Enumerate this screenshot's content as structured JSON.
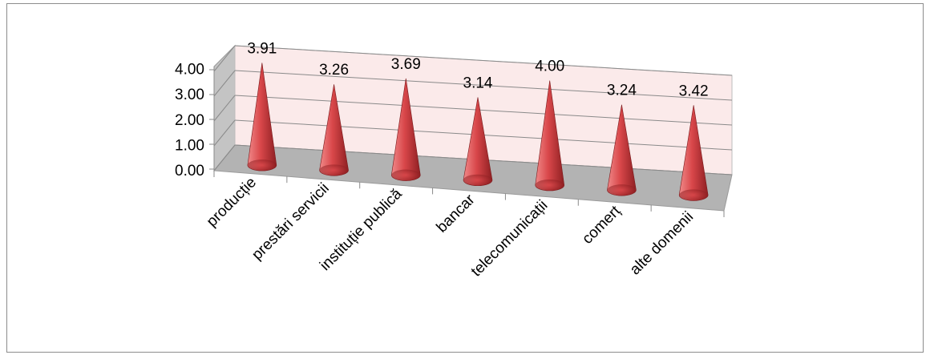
{
  "chart_data": {
    "type": "bar",
    "style": "3d-cone",
    "categories": [
      "producție",
      "prestări servicii",
      "instituție publică",
      "bancar",
      "telecomunicații",
      "comerț",
      "alte domenii"
    ],
    "values": [
      3.91,
      3.26,
      3.69,
      3.14,
      4.0,
      3.24,
      3.42
    ],
    "value_labels": [
      "3.91",
      "3.26",
      "3.69",
      "3.14",
      "4.00",
      "3.24",
      "3.42"
    ],
    "y_ticks": [
      "0.00",
      "1.00",
      "2.00",
      "3.00",
      "4.00"
    ],
    "ylim": [
      0,
      4
    ],
    "title": "",
    "xlabel": "",
    "ylabel": "",
    "grid": true,
    "legend": "none",
    "colors": {
      "cone_light": "#f08a8a",
      "cone_mid": "#d9474a",
      "cone_dark": "#8e1f22",
      "back_wall": "#fbeaea",
      "side_wall": "#c4c4c4",
      "floor": "#b3b3b3",
      "gridline": "#8a8a8a"
    }
  }
}
